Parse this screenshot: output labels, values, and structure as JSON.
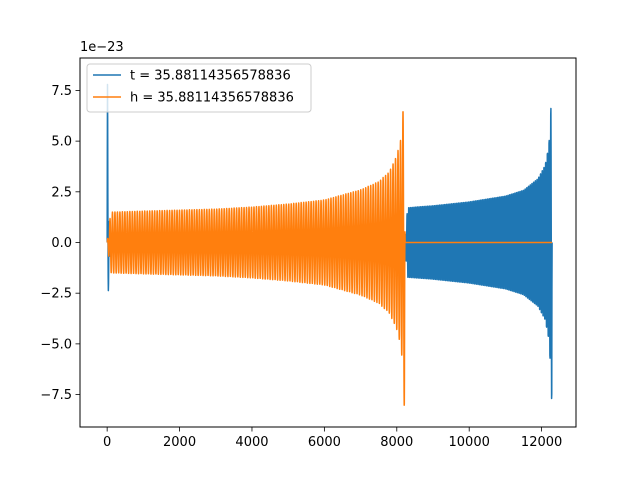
{
  "chart_data": {
    "type": "line",
    "title": "",
    "xlabel": "",
    "ylabel": "",
    "y_offset_text": "1e−23",
    "xlim": [
      -750,
      12950
    ],
    "ylim": [
      -9.1,
      9.1
    ],
    "x_ticks": [
      0,
      2000,
      4000,
      6000,
      8000,
      10000,
      12000
    ],
    "x_tick_labels": [
      "0",
      "2000",
      "4000",
      "6000",
      "8000",
      "10000",
      "12000"
    ],
    "y_ticks": [
      -7.5,
      -5.0,
      -2.5,
      0.0,
      2.5,
      5.0,
      7.5
    ],
    "y_tick_labels": [
      "−7.5",
      "−5.0",
      "−2.5",
      "0.0",
      "2.5",
      "5.0",
      "7.5"
    ],
    "grid": false,
    "legend_position": "top-left",
    "series": [
      {
        "name": "t = 35.88114356578836",
        "color": "#1f77b4",
        "envelope": {
          "x": [
            0,
            10,
            20,
            50,
            100,
            130,
            8220,
            8300,
            9000,
            10000,
            11000,
            11500,
            11900,
            12100,
            12200,
            12250,
            12270,
            12280,
            12290
          ],
          "amplitude": [
            6.4,
            8.3,
            3.5,
            1.2,
            0.4,
            0.0,
            0.0,
            1.8,
            1.9,
            2.1,
            2.4,
            2.7,
            3.3,
            4.0,
            5.0,
            6.5,
            7.8,
            8.3,
            0.0
          ],
          "cycles": 260
        }
      },
      {
        "name": "h = 35.88114356578836",
        "color": "#ff7f0e",
        "envelope": {
          "x": [
            0,
            60,
            100,
            1000,
            2000,
            3000,
            4000,
            5000,
            6000,
            7000,
            7500,
            7800,
            8000,
            8100,
            8150,
            8180,
            8200,
            8210,
            8230
          ],
          "amplitude": [
            0.0,
            0.9,
            1.5,
            1.55,
            1.6,
            1.65,
            1.75,
            1.9,
            2.1,
            2.6,
            3.0,
            3.5,
            4.3,
            5.0,
            5.8,
            6.8,
            7.8,
            8.3,
            0.0
          ],
          "cycles": 120
        }
      }
    ]
  }
}
